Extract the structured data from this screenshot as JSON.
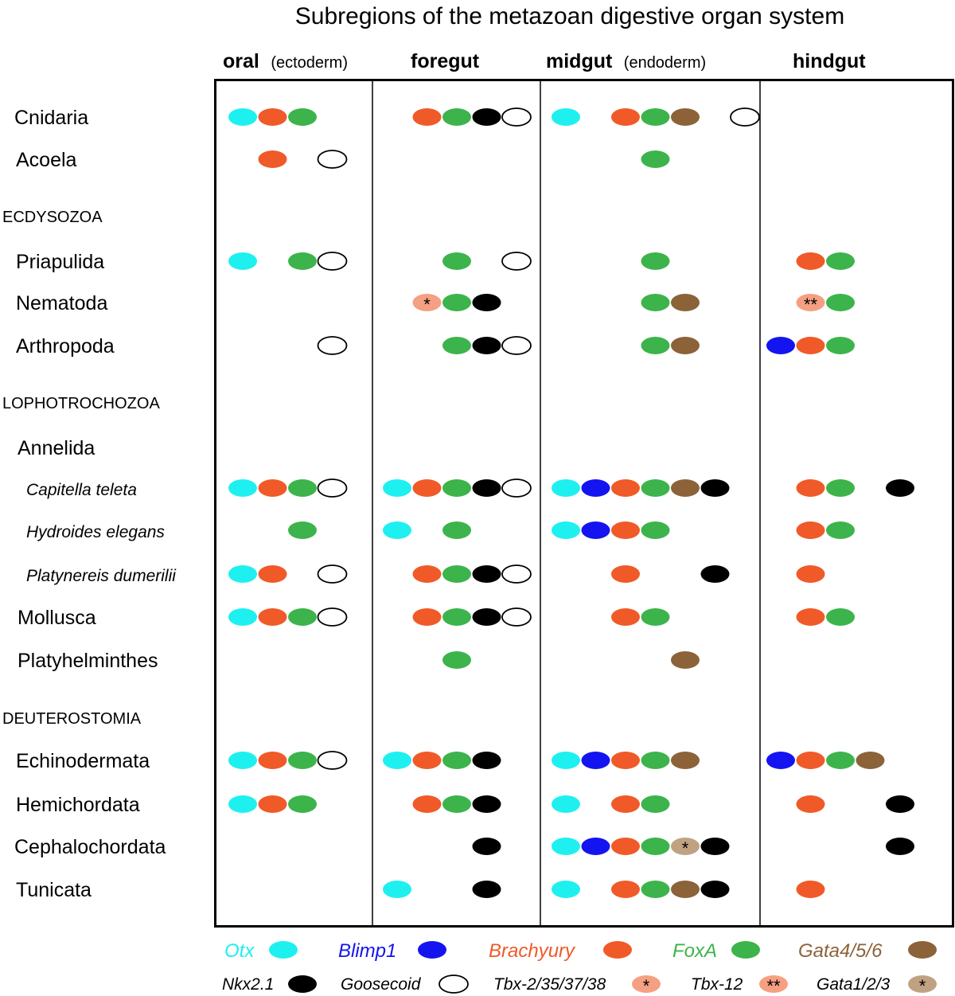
{
  "title": "Subregions of the metazoan digestive organ system",
  "columns": [
    {
      "id": "oral",
      "label": "oral",
      "sub": "(ectoderm)"
    },
    {
      "id": "foregut",
      "label": "foregut",
      "sub": ""
    },
    {
      "id": "midgut",
      "label": "midgut",
      "sub": "(endoderm)"
    },
    {
      "id": "hindgut",
      "label": "hindgut",
      "sub": ""
    }
  ],
  "genes": {
    "otx": {
      "label": "Otx",
      "color": "#1ef0f0",
      "fill": "#1ef0f0",
      "stroke": "none"
    },
    "blimp1": {
      "label": "Blimp1",
      "color": "#1414f0",
      "fill": "#1414f0",
      "stroke": "none"
    },
    "brachyury": {
      "label": "Brachyury",
      "color": "#f05a28",
      "fill": "#f05a28",
      "stroke": "none"
    },
    "foxa": {
      "label": "FoxA",
      "color": "#3cb44b",
      "fill": "#3cb44b",
      "stroke": "none"
    },
    "gata456": {
      "label": "Gata4/5/6",
      "color": "#8c6239",
      "fill": "#8c6239",
      "stroke": "none"
    },
    "nkx21": {
      "label": "Nkx2.1",
      "color": "#000000",
      "fill": "#000000",
      "stroke": "none"
    },
    "goosecoid": {
      "label": "Goosecoid",
      "color": "#000000",
      "fill": "#ffffff",
      "stroke": "#000000"
    },
    "tbx2": {
      "label": "Tbx-2/35/37/38",
      "color": "#000000",
      "fill": "#f5a082",
      "stroke": "none",
      "mark": "*"
    },
    "tbx12": {
      "label": "Tbx-12",
      "color": "#000000",
      "fill": "#f5a082",
      "stroke": "none",
      "mark": "**"
    },
    "gata123": {
      "label": "Gata1/2/3",
      "color": "#000000",
      "fill": "#c0a283",
      "stroke": "none",
      "mark": "*"
    }
  },
  "legend": {
    "row1": [
      "otx",
      "blimp1",
      "brachyury",
      "foxa",
      "gata456"
    ],
    "row2": [
      "nkx21",
      "goosecoid",
      "tbx2",
      "tbx12",
      "gata123"
    ]
  },
  "rows": [
    {
      "label": "Cnidaria",
      "style": "taxon",
      "cells": {
        "oral": [
          "otx",
          "brachyury",
          "foxa",
          null,
          null,
          null
        ],
        "foregut": [
          null,
          "brachyury",
          "foxa",
          "nkx21",
          "goosecoid",
          null
        ],
        "midgut": [
          "otx",
          null,
          "brachyury",
          "foxa",
          "gata456",
          null,
          "goosecoid"
        ],
        "hindgut": []
      }
    },
    {
      "label": "Acoela",
      "style": "taxon",
      "cells": {
        "oral": [
          null,
          "brachyury",
          null,
          "goosecoid"
        ],
        "foregut": [],
        "midgut": [
          null,
          null,
          null,
          "foxa"
        ],
        "hindgut": []
      }
    },
    {
      "label": "ECDYSOZOA",
      "style": "group",
      "cells": {}
    },
    {
      "label": "Priapulida",
      "style": "taxon",
      "cells": {
        "oral": [
          "otx",
          null,
          "foxa",
          "goosecoid"
        ],
        "foregut": [
          null,
          null,
          "foxa",
          null,
          "goosecoid"
        ],
        "midgut": [
          null,
          null,
          null,
          "foxa"
        ],
        "hindgut": [
          null,
          "brachyury",
          "foxa"
        ]
      }
    },
    {
      "label": "Nematoda",
      "style": "taxon",
      "cells": {
        "oral": [],
        "foregut": [
          null,
          "tbx2",
          "foxa",
          "nkx21"
        ],
        "midgut": [
          null,
          null,
          null,
          "foxa",
          "gata456"
        ],
        "hindgut": [
          null,
          "tbx12",
          "foxa"
        ]
      }
    },
    {
      "label": "Arthropoda",
      "style": "taxon",
      "cells": {
        "oral": [
          null,
          null,
          null,
          "goosecoid"
        ],
        "foregut": [
          null,
          null,
          "foxa",
          "nkx21",
          "goosecoid"
        ],
        "midgut": [
          null,
          null,
          null,
          "foxa",
          "gata456"
        ],
        "hindgut": [
          "blimp1",
          "brachyury",
          "foxa"
        ]
      }
    },
    {
      "label": "LOPHOTROCHOZOA",
      "style": "group",
      "cells": {}
    },
    {
      "label": "Annelida",
      "style": "taxon",
      "cells": {}
    },
    {
      "label": "Capitella teleta",
      "style": "species",
      "cells": {
        "oral": [
          "otx",
          "brachyury",
          "foxa",
          "goosecoid"
        ],
        "foregut": [
          "otx",
          "brachyury",
          "foxa",
          "nkx21",
          "goosecoid"
        ],
        "midgut": [
          "otx",
          "blimp1",
          "brachyury",
          "foxa",
          "gata456",
          "nkx21"
        ],
        "hindgut": [
          null,
          "brachyury",
          "foxa",
          null,
          "nkx21"
        ]
      }
    },
    {
      "label": "Hydroides elegans",
      "style": "species",
      "cells": {
        "oral": [
          null,
          null,
          "foxa"
        ],
        "foregut": [
          "otx",
          null,
          "foxa"
        ],
        "midgut": [
          "otx",
          "blimp1",
          "brachyury",
          "foxa"
        ],
        "hindgut": [
          null,
          "brachyury",
          "foxa"
        ]
      }
    },
    {
      "label": "Platynereis dumerilii",
      "style": "species",
      "cells": {
        "oral": [
          "otx",
          "brachyury",
          null,
          "goosecoid"
        ],
        "foregut": [
          null,
          "brachyury",
          "foxa",
          "nkx21",
          "goosecoid"
        ],
        "midgut": [
          null,
          null,
          "brachyury",
          null,
          null,
          "nkx21"
        ],
        "hindgut": [
          null,
          "brachyury"
        ]
      }
    },
    {
      "label": "Mollusca",
      "style": "taxon",
      "cells": {
        "oral": [
          "otx",
          "brachyury",
          "foxa",
          "goosecoid"
        ],
        "foregut": [
          null,
          "brachyury",
          "foxa",
          "nkx21",
          "goosecoid"
        ],
        "midgut": [
          null,
          null,
          "brachyury",
          "foxa"
        ],
        "hindgut": [
          null,
          "brachyury",
          "foxa"
        ]
      }
    },
    {
      "label": "Platyhelminthes",
      "style": "taxon",
      "cells": {
        "oral": [],
        "foregut": [
          null,
          null,
          "foxa"
        ],
        "midgut": [
          null,
          null,
          null,
          null,
          "gata456"
        ],
        "hindgut": []
      }
    },
    {
      "label": "DEUTEROSTOMIA",
      "style": "group",
      "cells": {}
    },
    {
      "label": "Echinodermata",
      "style": "taxon",
      "cells": {
        "oral": [
          "otx",
          "brachyury",
          "foxa",
          "goosecoid"
        ],
        "foregut": [
          "otx",
          "brachyury",
          "foxa",
          "nkx21"
        ],
        "midgut": [
          "otx",
          "blimp1",
          "brachyury",
          "foxa",
          "gata456"
        ],
        "hindgut": [
          "blimp1",
          "brachyury",
          "foxa",
          "gata456"
        ]
      }
    },
    {
      "label": "Hemichordata",
      "style": "taxon",
      "cells": {
        "oral": [
          "otx",
          "brachyury",
          "foxa"
        ],
        "foregut": [
          null,
          "brachyury",
          "foxa",
          "nkx21"
        ],
        "midgut": [
          "otx",
          null,
          "brachyury",
          "foxa"
        ],
        "hindgut": [
          null,
          "brachyury",
          null,
          null,
          "nkx21"
        ]
      }
    },
    {
      "label": "Cephalochordata",
      "style": "taxon",
      "cells": {
        "oral": [],
        "foregut": [
          null,
          null,
          null,
          "nkx21"
        ],
        "midgut": [
          "otx",
          "blimp1",
          "brachyury",
          "foxa",
          "gata123",
          "nkx21"
        ],
        "hindgut": [
          null,
          null,
          null,
          null,
          "nkx21"
        ]
      }
    },
    {
      "label": "Tunicata",
      "style": "taxon",
      "cells": {
        "oral": [],
        "foregut": [
          "otx",
          null,
          null,
          "nkx21"
        ],
        "midgut": [
          "otx",
          null,
          "brachyury",
          "foxa",
          "gata456",
          "nkx21"
        ],
        "hindgut": [
          null,
          "brachyury"
        ]
      }
    }
  ]
}
